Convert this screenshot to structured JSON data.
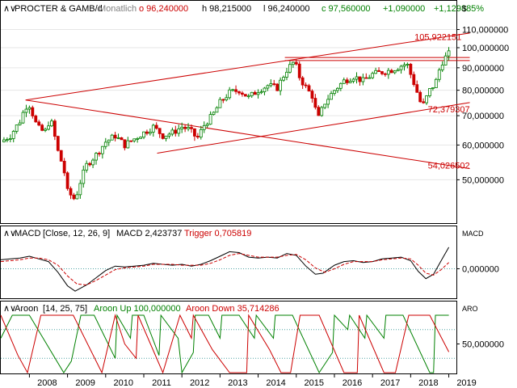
{
  "header": {
    "symbol": "PROCTER & GAMB/d",
    "period": "Monatlich",
    "open": "o 96,240000",
    "high": "h 98,215000",
    "low": "l 96,240000",
    "close": "c 97,560000",
    "change": "+1,090000",
    "change_pct": "+1,129885%",
    "scale_mode": "$"
  },
  "macd_header": {
    "label": "MACD",
    "params": "[Close, 12, 26, 9]",
    "macd": "MACD 2,423737",
    "trigger": "Trigger 0,705819",
    "axis_tag": "MACD",
    "zero_tick": "0,000000"
  },
  "aroon_header": {
    "label": "Aroon",
    "params": "[14, 25, 75]",
    "up": "Aroon Up 100,000000",
    "down": "Aroon Down 35,714286",
    "axis_tag": "ARO",
    "mid_tick": "50,000000"
  },
  "colors": {
    "up_candle": "#008000",
    "down_candle": "#cc0000",
    "trendline": "#cc0000",
    "macd_line": "#000000",
    "trigger_line": "#cc0000",
    "aroon_up": "#008000",
    "aroon_down": "#cc0000",
    "reference_line": "#4fa3a3"
  },
  "chart_data": [
    {
      "type": "candlestick",
      "title": "PROCTER & GAMB/d",
      "x_range": [
        2007.25,
        2019.2
      ],
      "ylim": [
        40,
        118
      ],
      "scale": "log",
      "y_ticks": [
        "110,000000",
        "100,000000",
        "90,000000",
        "80,000000",
        "70,000000",
        "60,000000",
        "50,000000"
      ],
      "y_tick_values": [
        110,
        100,
        90,
        80,
        70,
        60,
        50
      ],
      "x_ticks": [
        "2008",
        "2009",
        "2010",
        "2011",
        "2012",
        "2013",
        "2014",
        "2015",
        "2016",
        "2017",
        "2018",
        "2019"
      ],
      "x_tick_values": [
        2008,
        2009,
        2010,
        2011,
        2012,
        2013,
        2014,
        2015,
        2016,
        2017,
        2018,
        2019
      ],
      "price_path": [
        [
          2007.25,
          61
        ],
        [
          2007.5,
          63
        ],
        [
          2007.75,
          68
        ],
        [
          2007.9,
          73.5
        ],
        [
          2008.0,
          74
        ],
        [
          2008.2,
          66
        ],
        [
          2008.4,
          64
        ],
        [
          2008.55,
          69
        ],
        [
          2008.75,
          58
        ],
        [
          2008.9,
          53
        ],
        [
          2009.0,
          47
        ],
        [
          2009.2,
          45
        ],
        [
          2009.35,
          50
        ],
        [
          2009.5,
          54
        ],
        [
          2009.75,
          57
        ],
        [
          2010.0,
          61
        ],
        [
          2010.25,
          63
        ],
        [
          2010.5,
          60
        ],
        [
          2010.75,
          62
        ],
        [
          2011.0,
          64
        ],
        [
          2011.25,
          66
        ],
        [
          2011.5,
          63
        ],
        [
          2011.75,
          64
        ],
        [
          2012.0,
          66
        ],
        [
          2012.2,
          65
        ],
        [
          2012.4,
          62
        ],
        [
          2012.6,
          67
        ],
        [
          2012.8,
          70
        ],
        [
          2013.0,
          75
        ],
        [
          2013.25,
          79
        ],
        [
          2013.5,
          80
        ],
        [
          2013.75,
          77
        ],
        [
          2014.0,
          80
        ],
        [
          2014.25,
          82
        ],
        [
          2014.5,
          81
        ],
        [
          2014.75,
          89
        ],
        [
          2014.95,
          93
        ],
        [
          2015.1,
          85
        ],
        [
          2015.3,
          80
        ],
        [
          2015.45,
          77
        ],
        [
          2015.55,
          68
        ],
        [
          2015.75,
          75
        ],
        [
          2016.0,
          80
        ],
        [
          2016.25,
          84
        ],
        [
          2016.5,
          86
        ],
        [
          2016.75,
          84
        ],
        [
          2017.0,
          87
        ],
        [
          2017.25,
          88
        ],
        [
          2017.5,
          89
        ],
        [
          2017.75,
          91
        ],
        [
          2017.9,
          92
        ],
        [
          2018.0,
          87
        ],
        [
          2018.15,
          80
        ],
        [
          2018.3,
          73
        ],
        [
          2018.5,
          80
        ],
        [
          2018.65,
          83
        ],
        [
          2018.8,
          92
        ],
        [
          2018.95,
          96
        ],
        [
          2019.05,
          97.6
        ]
      ],
      "trendlines": [
        {
          "from": [
            2007.9,
            76
          ],
          "to": [
            2019.55,
            108
          ]
        },
        {
          "from": [
            2007.9,
            76
          ],
          "to": [
            2019.55,
            53
          ]
        },
        {
          "from": [
            2011.35,
            57.5
          ],
          "to": [
            2019.55,
            75
          ]
        },
        {
          "from": [
            2014.7,
            95
          ],
          "to": [
            2019.55,
            95
          ]
        },
        {
          "from": [
            2014.7,
            93.5
          ],
          "to": [
            2019.55,
            93.5
          ]
        }
      ],
      "annotations": [
        {
          "text": "105,922151",
          "x": 2018.1,
          "y": 105.9
        },
        {
          "text": "72,379307",
          "x": 2018.45,
          "y": 72.4
        },
        {
          "text": "54,026502",
          "x": 2018.45,
          "y": 54.0
        }
      ]
    },
    {
      "type": "line",
      "title": "MACD [Close, 12, 26, 9]",
      "ylim": [
        -3.2,
        3.2
      ],
      "y_ticks": [
        "0,000000"
      ],
      "y_tick_values": [
        0
      ],
      "series": [
        {
          "name": "MACD",
          "points": [
            [
              2007.25,
              1.0
            ],
            [
              2007.5,
              1.1
            ],
            [
              2007.75,
              1.2
            ],
            [
              2008.0,
              1.4
            ],
            [
              2008.25,
              1.1
            ],
            [
              2008.5,
              0.8
            ],
            [
              2008.75,
              -0.4
            ],
            [
              2009.0,
              -1.9
            ],
            [
              2009.2,
              -2.5
            ],
            [
              2009.5,
              -1.8
            ],
            [
              2009.75,
              -1.0
            ],
            [
              2010.0,
              -0.2
            ],
            [
              2010.25,
              0.3
            ],
            [
              2010.5,
              0.2
            ],
            [
              2010.75,
              0.3
            ],
            [
              2011.0,
              0.4
            ],
            [
              2011.25,
              0.6
            ],
            [
              2011.5,
              0.5
            ],
            [
              2011.75,
              0.4
            ],
            [
              2012.0,
              0.5
            ],
            [
              2012.25,
              0.3
            ],
            [
              2012.5,
              0.5
            ],
            [
              2012.75,
              0.9
            ],
            [
              2013.0,
              1.4
            ],
            [
              2013.25,
              1.9
            ],
            [
              2013.5,
              1.8
            ],
            [
              2013.75,
              1.3
            ],
            [
              2014.0,
              1.2
            ],
            [
              2014.25,
              1.3
            ],
            [
              2014.5,
              1.2
            ],
            [
              2014.75,
              1.7
            ],
            [
              2015.0,
              1.5
            ],
            [
              2015.25,
              0.3
            ],
            [
              2015.5,
              -0.6
            ],
            [
              2015.7,
              -0.5
            ],
            [
              2016.0,
              0.4
            ],
            [
              2016.25,
              0.8
            ],
            [
              2016.5,
              0.9
            ],
            [
              2016.75,
              0.7
            ],
            [
              2017.0,
              0.8
            ],
            [
              2017.25,
              1.1
            ],
            [
              2017.5,
              1.2
            ],
            [
              2017.75,
              1.3
            ],
            [
              2018.0,
              0.9
            ],
            [
              2018.2,
              -0.3
            ],
            [
              2018.4,
              -1.1
            ],
            [
              2018.6,
              -0.6
            ],
            [
              2018.8,
              0.9
            ],
            [
              2019.0,
              2.4
            ]
          ]
        },
        {
          "name": "Trigger",
          "points": [
            [
              2007.25,
              0.8
            ],
            [
              2007.5,
              0.9
            ],
            [
              2007.75,
              1.0
            ],
            [
              2008.0,
              1.2
            ],
            [
              2008.25,
              1.2
            ],
            [
              2008.5,
              1.0
            ],
            [
              2008.75,
              0.4
            ],
            [
              2009.0,
              -0.8
            ],
            [
              2009.25,
              -1.7
            ],
            [
              2009.5,
              -1.8
            ],
            [
              2009.75,
              -1.3
            ],
            [
              2010.0,
              -0.7
            ],
            [
              2010.25,
              -0.1
            ],
            [
              2010.5,
              0.1
            ],
            [
              2010.75,
              0.2
            ],
            [
              2011.0,
              0.3
            ],
            [
              2011.25,
              0.5
            ],
            [
              2011.5,
              0.5
            ],
            [
              2011.75,
              0.5
            ],
            [
              2012.0,
              0.4
            ],
            [
              2012.25,
              0.4
            ],
            [
              2012.5,
              0.4
            ],
            [
              2012.75,
              0.6
            ],
            [
              2013.0,
              1.0
            ],
            [
              2013.25,
              1.5
            ],
            [
              2013.5,
              1.7
            ],
            [
              2013.75,
              1.5
            ],
            [
              2014.0,
              1.3
            ],
            [
              2014.25,
              1.3
            ],
            [
              2014.5,
              1.3
            ],
            [
              2014.75,
              1.5
            ],
            [
              2015.0,
              1.6
            ],
            [
              2015.25,
              1.0
            ],
            [
              2015.5,
              0.1
            ],
            [
              2015.75,
              -0.4
            ],
            [
              2016.0,
              0.0
            ],
            [
              2016.25,
              0.5
            ],
            [
              2016.5,
              0.8
            ],
            [
              2016.75,
              0.8
            ],
            [
              2017.0,
              0.8
            ],
            [
              2017.25,
              1.0
            ],
            [
              2017.5,
              1.1
            ],
            [
              2017.75,
              1.2
            ],
            [
              2018.0,
              1.1
            ],
            [
              2018.2,
              0.4
            ],
            [
              2018.4,
              -0.5
            ],
            [
              2018.6,
              -0.7
            ],
            [
              2018.8,
              -0.1
            ],
            [
              2019.0,
              0.7
            ]
          ]
        }
      ]
    },
    {
      "type": "line",
      "title": "Aroon [14, 25, 75]",
      "ylim": [
        0,
        100
      ],
      "y_ticks": [
        "50,000000"
      ],
      "y_tick_values": [
        50
      ],
      "reference_lines": [
        25,
        75
      ],
      "series": [
        {
          "name": "Aroon Up",
          "points": [
            [
              2007.25,
              60
            ],
            [
              2007.55,
              100
            ],
            [
              2008.0,
              100
            ],
            [
              2008.9,
              0
            ],
            [
              2009.1,
              20
            ],
            [
              2009.35,
              100
            ],
            [
              2009.7,
              100
            ],
            [
              2010.25,
              25
            ],
            [
              2010.3,
              100
            ],
            [
              2010.65,
              60
            ],
            [
              2010.7,
              100
            ],
            [
              2011.0,
              100
            ],
            [
              2011.4,
              30
            ],
            [
              2011.45,
              100
            ],
            [
              2011.9,
              60
            ],
            [
              2012.0,
              0
            ],
            [
              2012.3,
              35
            ],
            [
              2012.35,
              100
            ],
            [
              2012.7,
              100
            ],
            [
              2013.0,
              60
            ],
            [
              2013.05,
              100
            ],
            [
              2013.5,
              100
            ],
            [
              2013.9,
              60
            ],
            [
              2013.95,
              100
            ],
            [
              2014.4,
              60
            ],
            [
              2014.45,
              100
            ],
            [
              2014.9,
              100
            ],
            [
              2015.6,
              0
            ],
            [
              2015.95,
              35
            ],
            [
              2016.0,
              100
            ],
            [
              2016.35,
              75
            ],
            [
              2016.4,
              100
            ],
            [
              2016.8,
              60
            ],
            [
              2016.85,
              100
            ],
            [
              2017.3,
              60
            ],
            [
              2017.35,
              100
            ],
            [
              2017.8,
              100
            ],
            [
              2018.5,
              0
            ],
            [
              2018.6,
              0
            ],
            [
              2018.65,
              100
            ],
            [
              2019.0,
              100
            ]
          ]
        },
        {
          "name": "Aroon Down",
          "points": [
            [
              2007.25,
              100
            ],
            [
              2007.7,
              30
            ],
            [
              2007.95,
              0
            ],
            [
              2008.3,
              100
            ],
            [
              2008.7,
              100
            ],
            [
              2008.75,
              100
            ],
            [
              2009.15,
              100
            ],
            [
              2009.9,
              0
            ],
            [
              2010.25,
              100
            ],
            [
              2010.5,
              50
            ],
            [
              2010.8,
              25
            ],
            [
              2010.85,
              100
            ],
            [
              2011.5,
              0
            ],
            [
              2011.95,
              100
            ],
            [
              2012.25,
              60
            ],
            [
              2012.3,
              100
            ],
            [
              2012.8,
              40
            ],
            [
              2013.25,
              0
            ],
            [
              2013.7,
              0
            ],
            [
              2013.75,
              100
            ],
            [
              2014.3,
              40
            ],
            [
              2014.6,
              0
            ],
            [
              2014.85,
              0
            ],
            [
              2015.1,
              100
            ],
            [
              2015.6,
              100
            ],
            [
              2016.25,
              0
            ],
            [
              2016.6,
              0
            ],
            [
              2016.65,
              100
            ],
            [
              2017.3,
              0
            ],
            [
              2017.6,
              0
            ],
            [
              2017.95,
              100
            ],
            [
              2018.5,
              100
            ],
            [
              2019.0,
              36
            ]
          ]
        }
      ]
    }
  ]
}
